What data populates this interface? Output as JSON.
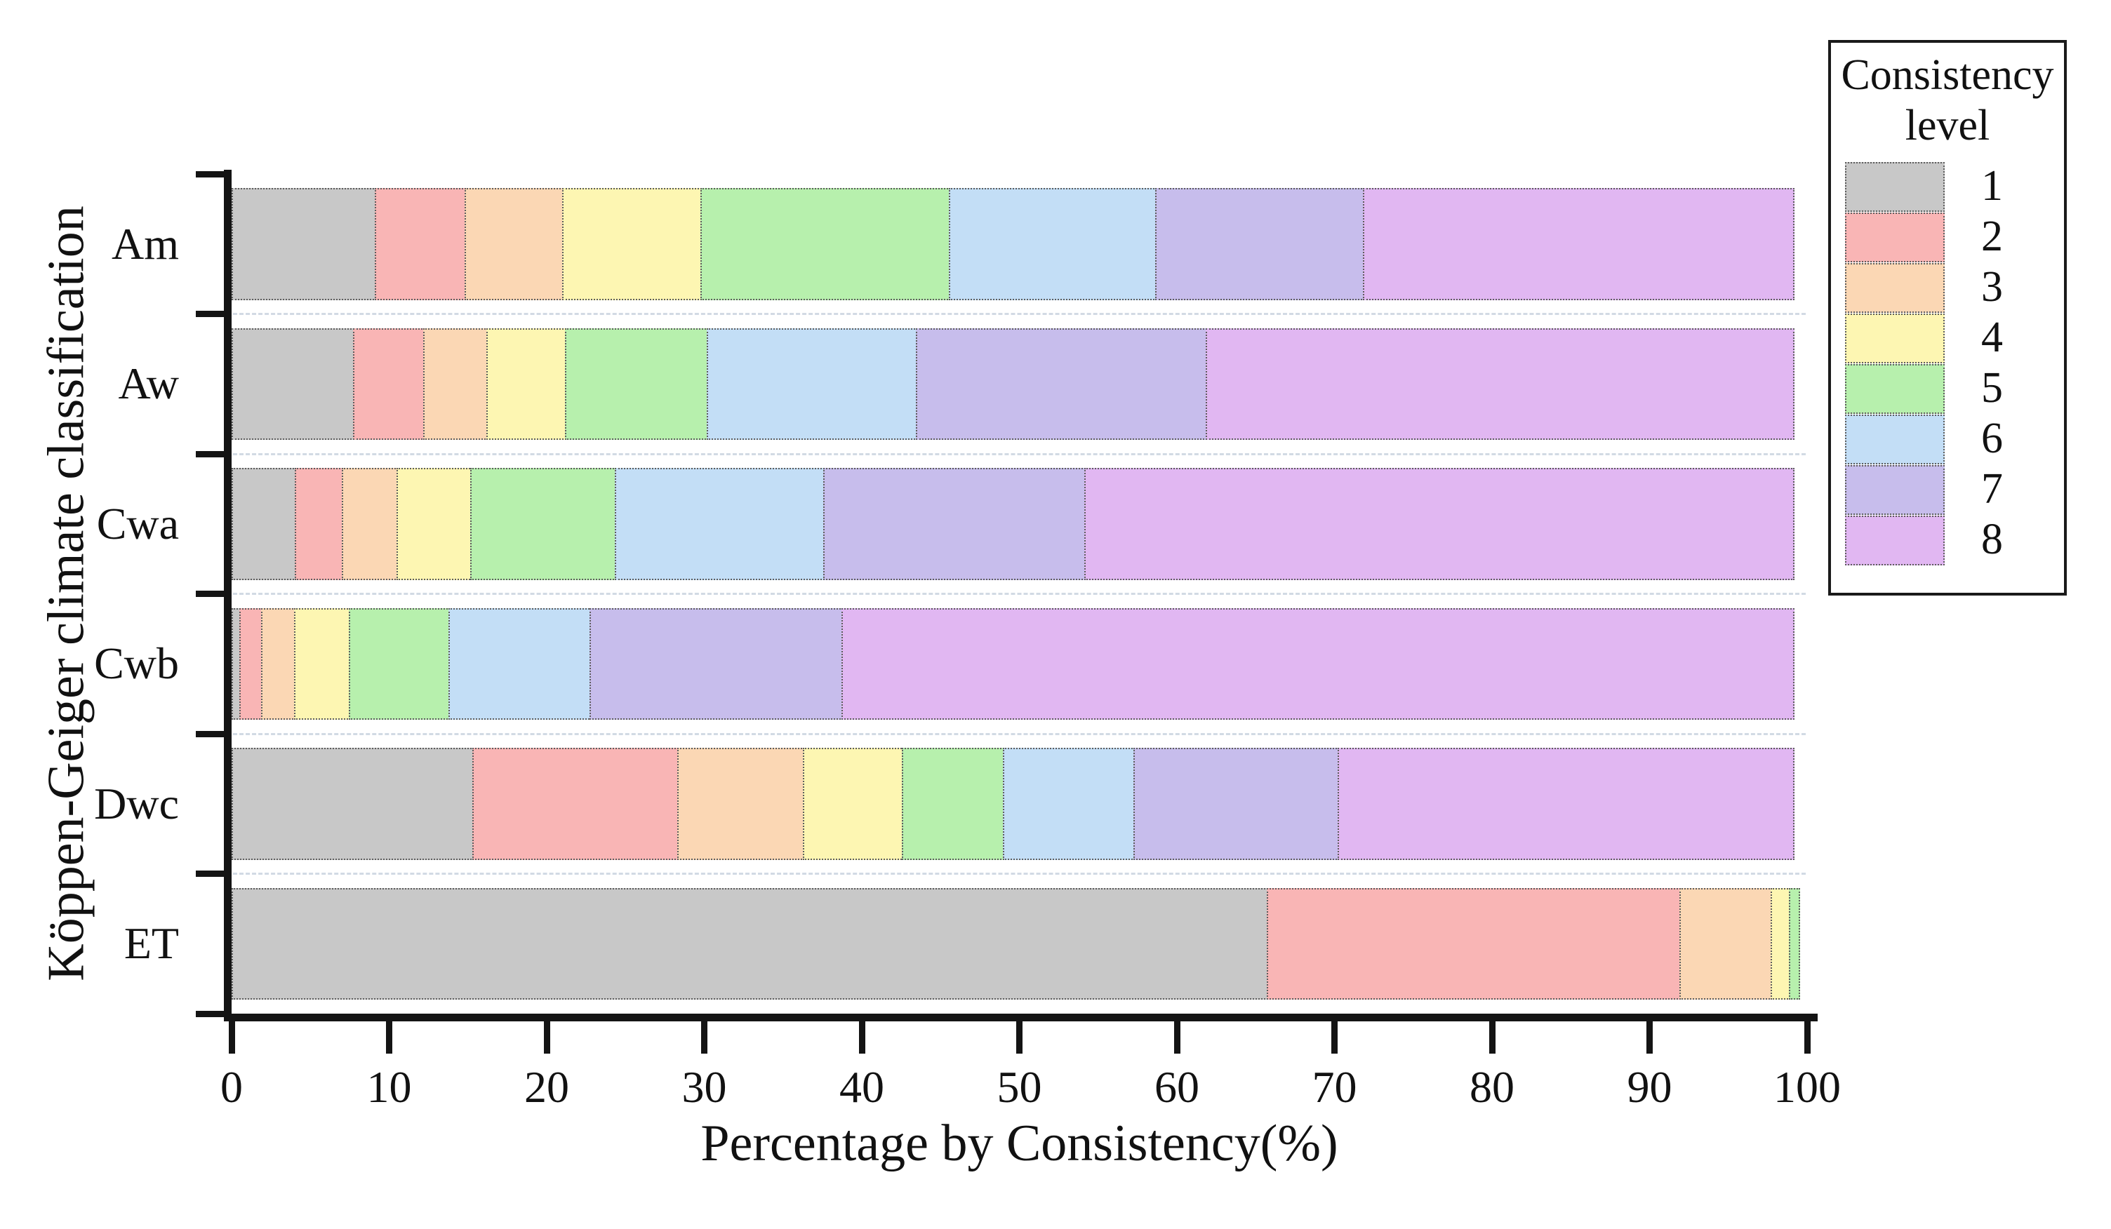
{
  "figure_title": "",
  "axes": {
    "x_title": "Percentage by Consistency(%)",
    "y_title": "Köppen-Geiger climate classification"
  },
  "legend": {
    "title_line1": "Consistency",
    "title_line2": "level",
    "items": [
      {
        "label": "1",
        "color": "#c8c8c8"
      },
      {
        "label": "2",
        "color": "#f9b5b5"
      },
      {
        "label": "3",
        "color": "#fbd7b4"
      },
      {
        "label": "4",
        "color": "#fdf6b2"
      },
      {
        "label": "5",
        "color": "#b7f0ad"
      },
      {
        "label": "6",
        "color": "#c3def6"
      },
      {
        "label": "7",
        "color": "#c7bdec"
      },
      {
        "label": "8",
        "color": "#e1b7f2"
      }
    ]
  },
  "chart_data": {
    "type": "bar",
    "orientation": "horizontal-stacked",
    "title": "",
    "xlabel": "Percentage by Consistency(%)",
    "ylabel": "Köppen-Geiger climate classification",
    "xlim": [
      0,
      100
    ],
    "x_ticks": [
      0,
      10,
      20,
      30,
      40,
      50,
      60,
      70,
      80,
      90,
      100
    ],
    "grid": false,
    "legend_title": "Consistency level",
    "legend_position": "outside-upper-right",
    "categories": [
      "Am",
      "Aw",
      "Cwa",
      "Cwb",
      "Dwc",
      "ET"
    ],
    "series": [
      {
        "name": "1",
        "color": "#c8c8c8",
        "values": [
          9.2,
          7.8,
          4.1,
          0.6,
          15.4,
          65.8
        ]
      },
      {
        "name": "2",
        "color": "#f9b5b5",
        "values": [
          5.8,
          4.6,
          3.1,
          1.5,
          13.1,
          26.3
        ]
      },
      {
        "name": "3",
        "color": "#fbd7b4",
        "values": [
          6.3,
          4.1,
          3.6,
          2.2,
          8.1,
          5.9
        ]
      },
      {
        "name": "4",
        "color": "#fdf6b2",
        "values": [
          8.9,
          5.1,
          4.8,
          3.6,
          6.4,
          1.3
        ]
      },
      {
        "name": "5",
        "color": "#b7f0ad",
        "values": [
          15.9,
          9.1,
          9.3,
          6.4,
          6.5,
          0.7
        ]
      },
      {
        "name": "6",
        "color": "#c3def6",
        "values": [
          13.2,
          13.4,
          13.3,
          9.1,
          8.4,
          0
        ]
      },
      {
        "name": "7",
        "color": "#c7bdec",
        "values": [
          13.3,
          18.5,
          16.7,
          16.1,
          13.1,
          0
        ]
      },
      {
        "name": "8",
        "color": "#e1b7f2",
        "values": [
          27.4,
          37.4,
          45.1,
          60.5,
          29.0,
          0
        ]
      }
    ]
  }
}
